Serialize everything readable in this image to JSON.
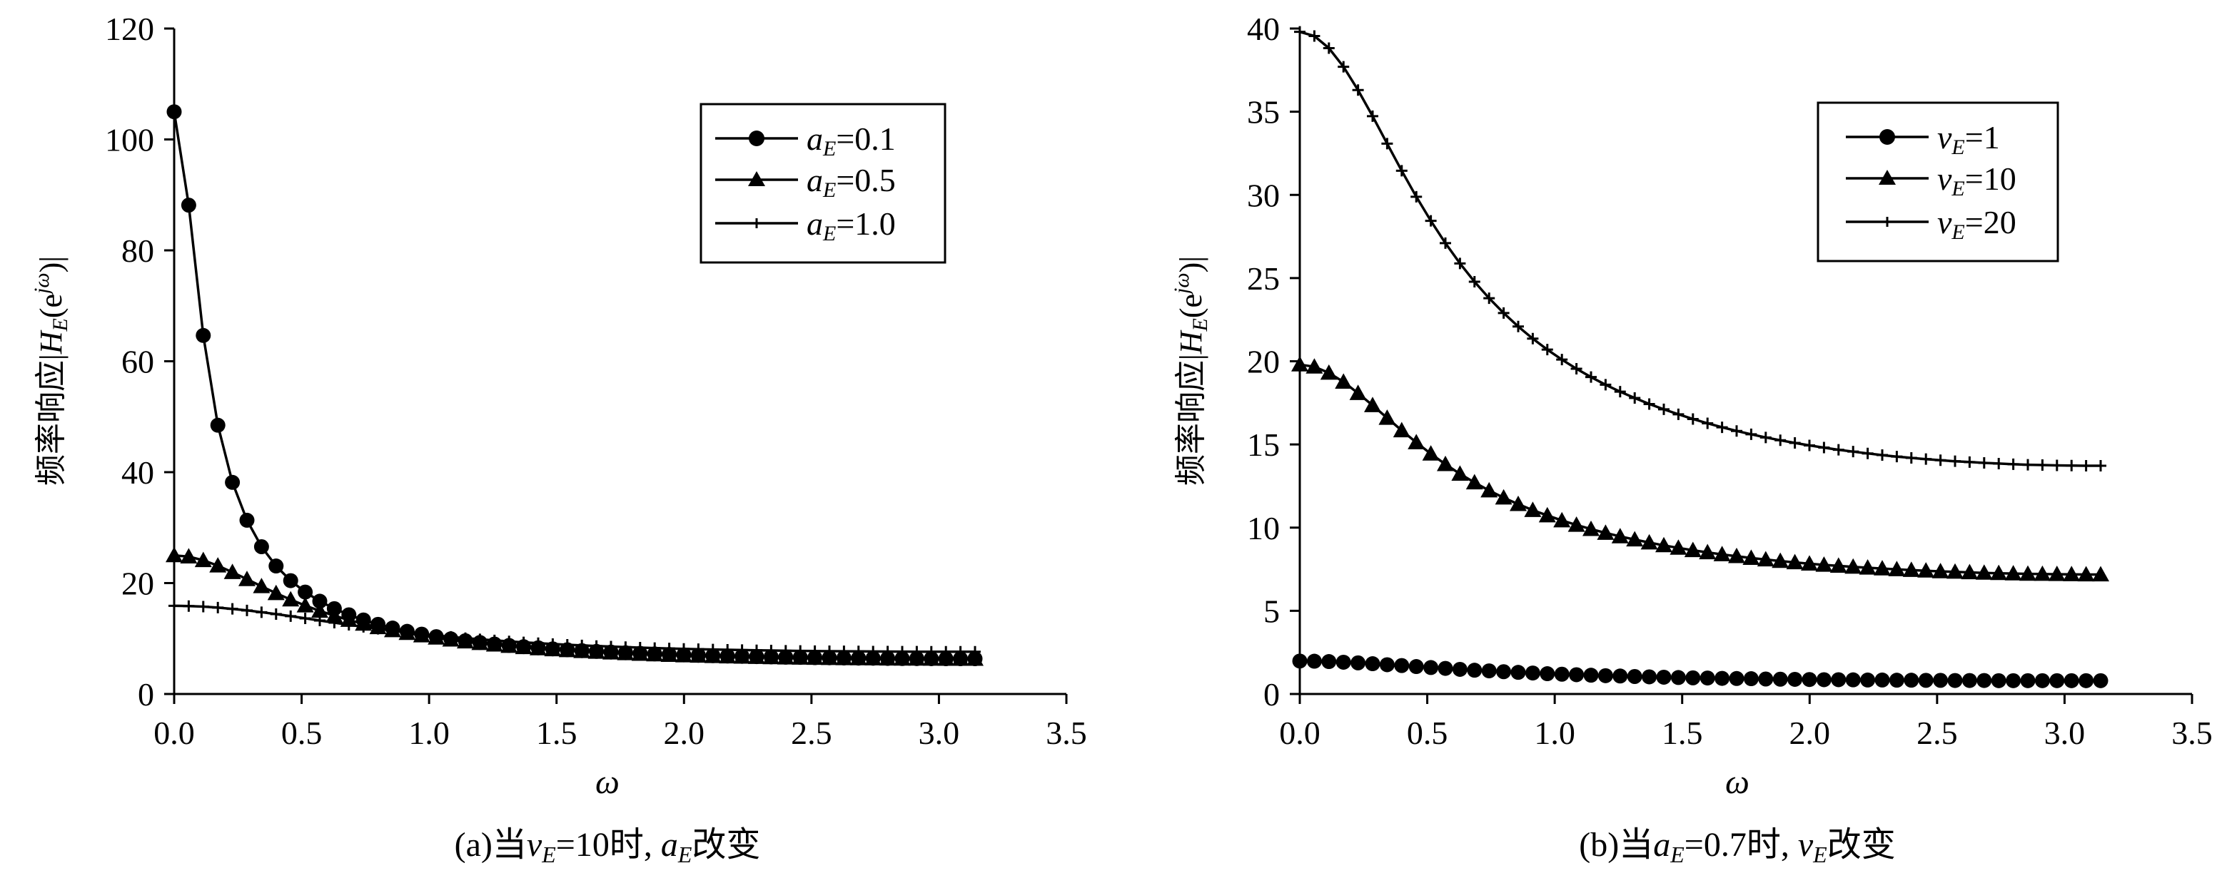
{
  "chart_data": [
    {
      "type": "line",
      "ylabel": "频率响应|H_E(e^jω)|",
      "xlabel": "ω",
      "caption": "(a)当v_E=10时, a_E改变",
      "xlim": [
        0,
        3.5
      ],
      "ylim": [
        0,
        120
      ],
      "xticks": [
        "0.0",
        "0.5",
        "1.0",
        "1.5",
        "2.0",
        "2.5",
        "3.0",
        "3.5"
      ],
      "yticks": [
        "0",
        "20",
        "40",
        "60",
        "80",
        "100",
        "120"
      ],
      "grid": false,
      "legend_position": "top-right",
      "series": [
        {
          "name": "a_E=0.1",
          "marker": "circle",
          "x": [
            0.0,
            0.0571,
            0.1142,
            0.1714,
            0.2285,
            0.2856,
            0.3427,
            0.3998,
            0.457,
            0.5141,
            0.5712,
            0.6283,
            0.6854,
            0.7426,
            0.7997,
            0.8568,
            0.9139,
            0.971,
            1.0282,
            1.0853,
            1.1424,
            1.1995,
            1.2566,
            1.3138,
            1.3709,
            1.428,
            1.4851,
            1.5422,
            1.5994,
            1.6565,
            1.7136,
            1.7707,
            1.8278,
            1.885,
            1.9421,
            1.9992,
            2.0563,
            2.1134,
            2.1706,
            2.2277,
            2.2848,
            2.3419,
            2.399,
            2.4562,
            2.5133,
            2.5704,
            2.6275,
            2.6846,
            2.7418,
            2.7989,
            2.856,
            2.9131,
            2.9702,
            3.0274,
            3.0845,
            3.1416
          ],
          "y": [
            104.99,
            88.15,
            64.66,
            48.47,
            38.16,
            31.33,
            26.56,
            23.08,
            20.44,
            18.38,
            16.73,
            15.39,
            14.28,
            13.35,
            12.56,
            11.89,
            11.3,
            10.79,
            10.34,
            9.95,
            9.6,
            9.29,
            9.01,
            8.76,
            8.53,
            8.33,
            8.14,
            7.98,
            7.82,
            7.68,
            7.56,
            7.44,
            7.33,
            7.23,
            7.14,
            7.06,
            6.98,
            6.91,
            6.85,
            6.79,
            6.74,
            6.69,
            6.64,
            6.6,
            6.56,
            6.53,
            6.5,
            6.47,
            6.45,
            6.42,
            6.4,
            6.39,
            6.37,
            6.36,
            6.36,
            6.36
          ]
        },
        {
          "name": "a_E=0.5",
          "marker": "triangle",
          "x": [
            0.0,
            0.0571,
            0.1142,
            0.1714,
            0.2285,
            0.2856,
            0.3427,
            0.3998,
            0.457,
            0.5141,
            0.5712,
            0.6283,
            0.6854,
            0.7426,
            0.7997,
            0.8568,
            0.9139,
            0.971,
            1.0282,
            1.0853,
            1.1424,
            1.1995,
            1.2566,
            1.3138,
            1.3709,
            1.428,
            1.4851,
            1.5422,
            1.5994,
            1.6565,
            1.7136,
            1.7707,
            1.8278,
            1.885,
            1.9421,
            1.9992,
            2.0563,
            2.1134,
            2.1706,
            2.2277,
            2.2848,
            2.3419,
            2.399,
            2.4562,
            2.5133,
            2.5704,
            2.6275,
            2.6846,
            2.7418,
            2.7989,
            2.856,
            2.9131,
            2.9702,
            3.0274,
            3.0845,
            3.1416
          ],
          "y": [
            25.0,
            24.77,
            24.11,
            23.14,
            21.96,
            20.69,
            19.41,
            18.17,
            17.02,
            15.95,
            14.98,
            14.12,
            13.34,
            12.65,
            12.03,
            11.48,
            10.98,
            10.54,
            10.14,
            9.78,
            9.45,
            9.16,
            8.89,
            8.65,
            8.42,
            8.22,
            8.04,
            7.87,
            7.72,
            7.58,
            7.45,
            7.33,
            7.22,
            7.12,
            7.03,
            6.95,
            6.88,
            6.81,
            6.75,
            6.7,
            6.65,
            6.6,
            6.56,
            6.52,
            6.49,
            6.46,
            6.43,
            6.41,
            6.39,
            6.37,
            6.35,
            6.34,
            6.33,
            6.32,
            6.32,
            6.32
          ]
        },
        {
          "name": "a_E=1.0",
          "marker": "plus",
          "x": [
            0.0,
            0.0571,
            0.1142,
            0.1714,
            0.2285,
            0.2856,
            0.3427,
            0.3998,
            0.457,
            0.5141,
            0.5712,
            0.6283,
            0.6854,
            0.7426,
            0.7997,
            0.8568,
            0.9139,
            0.971,
            1.0282,
            1.0853,
            1.1424,
            1.1995,
            1.2566,
            1.3138,
            1.3709,
            1.428,
            1.4851,
            1.5422,
            1.5994,
            1.6565,
            1.7136,
            1.7707,
            1.8278,
            1.885,
            1.9421,
            1.9992,
            2.0563,
            2.1134,
            2.1706,
            2.2277,
            2.2848,
            2.3419,
            2.399,
            2.4562,
            2.5133,
            2.5704,
            2.6275,
            2.6846,
            2.7418,
            2.7989,
            2.856,
            2.9131,
            2.9702,
            3.0274,
            3.0845,
            3.1416
          ],
          "y": [
            15.9,
            15.86,
            15.75,
            15.58,
            15.35,
            15.07,
            14.75,
            14.4,
            14.03,
            13.64,
            13.25,
            12.86,
            12.48,
            12.11,
            11.76,
            11.43,
            11.12,
            10.82,
            10.55,
            10.3,
            10.07,
            9.86,
            9.66,
            9.48,
            9.31,
            9.16,
            9.01,
            8.88,
            8.76,
            8.65,
            8.55,
            8.45,
            8.36,
            8.28,
            8.21,
            8.14,
            8.08,
            8.02,
            7.97,
            7.92,
            7.88,
            7.84,
            7.8,
            7.77,
            7.74,
            7.72,
            7.7,
            7.68,
            7.66,
            7.65,
            7.64,
            7.63,
            7.62,
            7.62,
            7.62,
            7.62
          ]
        }
      ]
    },
    {
      "type": "line",
      "ylabel": "频率响应|H_E(e^jω)|",
      "xlabel": "ω",
      "caption": "(b)当a_E=0.7时, v_E改变",
      "xlim": [
        0,
        3.5
      ],
      "ylim": [
        0,
        40
      ],
      "xticks": [
        "0.0",
        "0.5",
        "1.0",
        "1.5",
        "2.0",
        "2.5",
        "3.0",
        "3.5"
      ],
      "yticks": [
        "0",
        "5",
        "10",
        "15",
        "20",
        "25",
        "30",
        "35",
        "40"
      ],
      "grid": false,
      "legend_position": "top-right",
      "series": [
        {
          "name": "v_E=1",
          "marker": "circle",
          "x": [
            0.0,
            0.0571,
            0.1142,
            0.1714,
            0.2285,
            0.2856,
            0.3427,
            0.3998,
            0.457,
            0.5141,
            0.5712,
            0.6283,
            0.6854,
            0.7426,
            0.7997,
            0.8568,
            0.9139,
            0.971,
            1.0282,
            1.0853,
            1.1424,
            1.1995,
            1.2566,
            1.3138,
            1.3709,
            1.428,
            1.4851,
            1.5422,
            1.5994,
            1.6565,
            1.7136,
            1.7707,
            1.8278,
            1.885,
            1.9421,
            1.9992,
            2.0563,
            2.1134,
            2.1706,
            2.2277,
            2.2848,
            2.3419,
            2.399,
            2.4562,
            2.5133,
            2.5704,
            2.6275,
            2.6846,
            2.7418,
            2.7989,
            2.856,
            2.9131,
            2.9702,
            3.0274,
            3.0845,
            3.1416
          ],
          "y": [
            1.98,
            1.97,
            1.95,
            1.91,
            1.87,
            1.82,
            1.76,
            1.71,
            1.65,
            1.59,
            1.54,
            1.48,
            1.43,
            1.39,
            1.34,
            1.3,
            1.26,
            1.22,
            1.19,
            1.16,
            1.13,
            1.1,
            1.08,
            1.05,
            1.03,
            1.01,
            0.99,
            0.97,
            0.96,
            0.94,
            0.93,
            0.92,
            0.9,
            0.89,
            0.88,
            0.87,
            0.86,
            0.86,
            0.85,
            0.84,
            0.84,
            0.83,
            0.83,
            0.82,
            0.82,
            0.81,
            0.81,
            0.81,
            0.8,
            0.8,
            0.8,
            0.8,
            0.8,
            0.8,
            0.8,
            0.8
          ]
        },
        {
          "name": "v_E=10",
          "marker": "triangle",
          "x": [
            0.0,
            0.0571,
            0.1142,
            0.1714,
            0.2285,
            0.2856,
            0.3427,
            0.3998,
            0.457,
            0.5141,
            0.5712,
            0.6283,
            0.6854,
            0.7426,
            0.7997,
            0.8568,
            0.9139,
            0.971,
            1.0282,
            1.0853,
            1.1424,
            1.1995,
            1.2566,
            1.3138,
            1.3709,
            1.428,
            1.4851,
            1.5422,
            1.5994,
            1.6565,
            1.7136,
            1.7707,
            1.8278,
            1.885,
            1.9421,
            1.9992,
            2.0563,
            2.1134,
            2.1706,
            2.2277,
            2.2848,
            2.3419,
            2.399,
            2.4562,
            2.5133,
            2.5704,
            2.6275,
            2.6846,
            2.7418,
            2.7989,
            2.856,
            2.9131,
            2.9702,
            3.0274,
            3.0845,
            3.1416
          ],
          "y": [
            19.8,
            19.67,
            19.3,
            18.76,
            18.08,
            17.35,
            16.59,
            15.84,
            15.12,
            14.44,
            13.81,
            13.23,
            12.71,
            12.23,
            11.8,
            11.41,
            11.05,
            10.73,
            10.43,
            10.16,
            9.91,
            9.68,
            9.47,
            9.28,
            9.1,
            8.93,
            8.78,
            8.64,
            8.51,
            8.39,
            8.28,
            8.17,
            8.08,
            7.99,
            7.91,
            7.83,
            7.76,
            7.7,
            7.64,
            7.59,
            7.54,
            7.49,
            7.45,
            7.41,
            7.37,
            7.34,
            7.31,
            7.28,
            7.26,
            7.24,
            7.22,
            7.21,
            7.2,
            7.19,
            7.18,
            7.18
          ]
        },
        {
          "name": "v_E=20",
          "marker": "plus",
          "x": [
            0.0,
            0.0571,
            0.1142,
            0.1714,
            0.2285,
            0.2856,
            0.3427,
            0.3998,
            0.457,
            0.5141,
            0.5712,
            0.6283,
            0.6854,
            0.7426,
            0.7997,
            0.8568,
            0.9139,
            0.971,
            1.0282,
            1.0853,
            1.1424,
            1.1995,
            1.2566,
            1.3138,
            1.3709,
            1.428,
            1.4851,
            1.5422,
            1.5994,
            1.6565,
            1.7136,
            1.7707,
            1.8278,
            1.885,
            1.9421,
            1.9992,
            2.0563,
            2.1134,
            2.1706,
            2.2277,
            2.2848,
            2.3419,
            2.399,
            2.4562,
            2.5133,
            2.5704,
            2.6275,
            2.6846,
            2.7418,
            2.7989,
            2.856,
            2.9131,
            2.9702,
            3.0274,
            3.0845,
            3.1416
          ],
          "y": [
            39.8,
            39.55,
            38.82,
            37.7,
            36.3,
            34.73,
            33.08,
            31.45,
            29.89,
            28.44,
            27.1,
            25.88,
            24.78,
            23.79,
            22.9,
            22.09,
            21.36,
            20.7,
            20.1,
            19.55,
            19.05,
            18.59,
            18.17,
            17.79,
            17.43,
            17.11,
            16.81,
            16.53,
            16.27,
            16.03,
            15.81,
            15.61,
            15.42,
            15.25,
            15.09,
            14.94,
            14.81,
            14.68,
            14.57,
            14.46,
            14.36,
            14.27,
            14.19,
            14.12,
            14.05,
            13.99,
            13.94,
            13.89,
            13.85,
            13.81,
            13.78,
            13.76,
            13.74,
            13.73,
            13.72,
            13.72
          ]
        }
      ]
    }
  ],
  "panels": [
    {
      "ylabel_cn": "频率响应",
      "ylabel_pre": "|",
      "ylabel_H": "H",
      "ylabel_E": "E",
      "ylabel_open": "(e",
      "ylabel_sup": "jω",
      "ylabel_close": ")|",
      "xlabel": "ω",
      "caption_pre": "(a)当",
      "caption_v1": "v",
      "caption_s1": "E",
      "caption_mid": "=10时, ",
      "caption_v2": "a",
      "caption_s2": "E",
      "caption_post": "改变",
      "legend": [
        {
          "var": "a",
          "sub": "E",
          "val": "=0.1"
        },
        {
          "var": "a",
          "sub": "E",
          "val": "=0.5"
        },
        {
          "var": "a",
          "sub": "E",
          "val": "=1.0"
        }
      ]
    },
    {
      "ylabel_cn": "频率响应",
      "ylabel_pre": "|",
      "ylabel_H": "H",
      "ylabel_E": "E",
      "ylabel_open": "(e",
      "ylabel_sup": "jω",
      "ylabel_close": ")|",
      "xlabel": "ω",
      "caption_pre": "(b)当",
      "caption_v1": "a",
      "caption_s1": "E",
      "caption_mid": "=0.7时, ",
      "caption_v2": "v",
      "caption_s2": "E",
      "caption_post": "改变",
      "legend": [
        {
          "var": "v",
          "sub": "E",
          "val": "=1"
        },
        {
          "var": "v",
          "sub": "E",
          "val": "=10"
        },
        {
          "var": "v",
          "sub": "E",
          "val": "=20"
        }
      ]
    }
  ],
  "colors": {
    "ink": "#000000",
    "background": "#ffffff"
  },
  "marker_icons": [
    "circle-marker-icon",
    "triangle-marker-icon",
    "plus-marker-icon"
  ]
}
